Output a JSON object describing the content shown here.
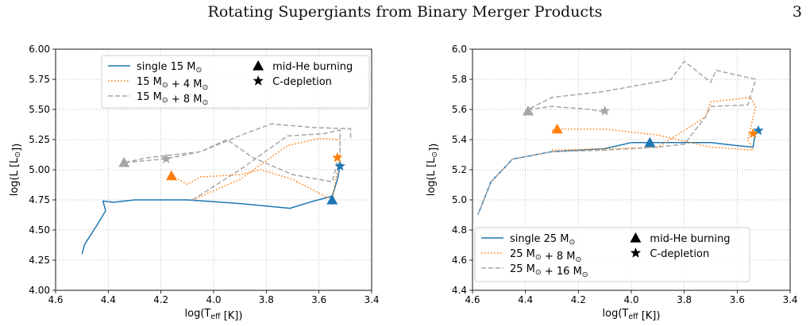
{
  "header": {
    "running_title": "Rotating Supergiants from Binary Merger Products",
    "page_number": "3"
  },
  "colors": {
    "blue": "#1f77b4",
    "orange": "#ff7f0e",
    "gray": "#a6a6a6"
  },
  "chart_data": [
    {
      "type": "line",
      "xlabel": "log(T_eff [K])",
      "ylabel": "log(L [L_⊙])",
      "xlim": [
        4.6,
        3.4
      ],
      "ylim": [
        4.0,
        6.0
      ],
      "x_ticks": [
        "4.6",
        "4.4",
        "4.2",
        "4.0",
        "3.8",
        "3.6",
        "3.4"
      ],
      "y_ticks": [
        "4.00",
        "4.25",
        "4.50",
        "4.75",
        "5.00",
        "5.25",
        "5.50",
        "5.75",
        "6.00"
      ],
      "grid": true,
      "legend_position": "top",
      "legend_markers": [
        {
          "symbol": "triangle",
          "label": "mid-He burning"
        },
        {
          "symbol": "star",
          "label": "C-depletion"
        }
      ],
      "series": [
        {
          "name": "single 15 M_⊙",
          "color": "blue",
          "style": "solid",
          "points": [
            [
              4.5,
              4.3
            ],
            [
              4.49,
              4.38
            ],
            [
              4.44,
              4.55
            ],
            [
              4.41,
              4.66
            ],
            [
              4.42,
              4.74
            ],
            [
              4.38,
              4.73
            ],
            [
              4.3,
              4.75
            ],
            [
              4.1,
              4.75
            ],
            [
              3.9,
              4.72
            ],
            [
              3.71,
              4.68
            ],
            [
              3.62,
              4.74
            ],
            [
              3.55,
              4.78
            ],
            [
              3.53,
              4.92
            ],
            [
              3.52,
              5.03
            ]
          ],
          "mid_he": [
            3.55,
            4.75
          ],
          "c_depletion": [
            3.52,
            5.03
          ]
        },
        {
          "name": "15 M_⊙ + 4 M_⊙",
          "color": "orange",
          "style": "dotted",
          "points": [
            [
              4.08,
              4.75
            ],
            [
              3.9,
              4.92
            ],
            [
              3.72,
              5.2
            ],
            [
              3.6,
              5.26
            ],
            [
              3.52,
              5.25
            ],
            [
              3.52,
              5.12
            ],
            [
              3.55,
              4.75
            ],
            [
              3.7,
              4.92
            ],
            [
              3.82,
              5.0
            ],
            [
              3.9,
              4.96
            ],
            [
              4.05,
              4.94
            ],
            [
              4.1,
              4.88
            ],
            [
              4.16,
              4.95
            ]
          ],
          "mid_he": [
            4.16,
            4.95
          ],
          "c_depletion": [
            3.53,
            5.1
          ]
        },
        {
          "name": "15 M_⊙ + 8 M_⊙",
          "color": "gray",
          "style": "dashed",
          "points": [
            [
              4.08,
              4.75
            ],
            [
              3.9,
              5.0
            ],
            [
              3.72,
              5.28
            ],
            [
              3.58,
              5.3
            ],
            [
              3.52,
              5.33
            ],
            [
              3.52,
              5.15
            ],
            [
              3.55,
              4.9
            ],
            [
              3.7,
              4.96
            ],
            [
              3.85,
              5.1
            ],
            [
              3.95,
              5.25
            ],
            [
              4.05,
              5.15
            ],
            [
              4.18,
              5.09
            ],
            [
              4.34,
              5.06
            ],
            [
              4.25,
              5.1
            ],
            [
              4.05,
              5.15
            ],
            [
              3.88,
              5.3
            ],
            [
              3.78,
              5.38
            ],
            [
              3.62,
              5.35
            ],
            [
              3.48,
              5.34
            ],
            [
              3.48,
              5.25
            ]
          ],
          "mid_he": [
            4.34,
            5.06
          ],
          "c_depletion": [
            4.18,
            5.09
          ]
        }
      ]
    },
    {
      "type": "line",
      "xlabel": "log(T_eff [K])",
      "ylabel": "log(L [L_⊙])",
      "xlim": [
        4.6,
        3.4
      ],
      "ylim": [
        4.4,
        6.0
      ],
      "x_ticks": [
        "4.6",
        "4.4",
        "4.2",
        "4.0",
        "3.8",
        "3.6",
        "3.4"
      ],
      "y_ticks": [
        "4.4",
        "4.6",
        "4.8",
        "5.0",
        "5.2",
        "5.4",
        "5.6",
        "5.8",
        "6.0"
      ],
      "grid": true,
      "legend_position": "bottom-left",
      "legend_markers": [
        {
          "symbol": "triangle",
          "label": "mid-He burning"
        },
        {
          "symbol": "star",
          "label": "C-depletion"
        }
      ],
      "series": [
        {
          "name": "single 25 M_⊙",
          "color": "blue",
          "style": "solid",
          "points": [
            [
              4.58,
              4.9
            ],
            [
              4.53,
              5.12
            ],
            [
              4.47,
              5.23
            ],
            [
              4.45,
              5.27
            ],
            [
              4.42,
              5.28
            ],
            [
              4.3,
              5.32
            ],
            [
              4.1,
              5.34
            ],
            [
              4.0,
              5.38
            ],
            [
              3.9,
              5.38
            ],
            [
              3.7,
              5.38
            ],
            [
              3.6,
              5.36
            ],
            [
              3.54,
              5.35
            ],
            [
              3.53,
              5.46
            ]
          ],
          "mid_he": [
            3.93,
            5.38
          ],
          "c_depletion": [
            3.52,
            5.46
          ]
        },
        {
          "name": "25 M_⊙ + 8 M_⊙",
          "color": "orange",
          "style": "dotted",
          "points": [
            [
              4.3,
              5.33
            ],
            [
              4.05,
              5.34
            ],
            [
              3.9,
              5.35
            ],
            [
              3.72,
              5.55
            ],
            [
              3.7,
              5.65
            ],
            [
              3.55,
              5.68
            ],
            [
              3.53,
              5.62
            ],
            [
              3.56,
              5.4
            ],
            [
              3.54,
              5.33
            ],
            [
              3.7,
              5.35
            ],
            [
              3.9,
              5.43
            ],
            [
              4.1,
              5.47
            ],
            [
              4.28,
              5.47
            ],
            [
              4.3,
              5.46
            ]
          ],
          "mid_he": [
            4.28,
            5.47
          ],
          "c_depletion": [
            3.54,
            5.44
          ]
        },
        {
          "name": "25 M_⊙ + 16 M_⊙",
          "color": "gray",
          "style": "dashed",
          "points": [
            [
              4.58,
              4.9
            ],
            [
              4.53,
              5.12
            ],
            [
              4.47,
              5.23
            ],
            [
              4.45,
              5.27
            ],
            [
              4.42,
              5.28
            ],
            [
              4.3,
              5.32
            ],
            [
              4.1,
              5.33
            ],
            [
              3.9,
              5.35
            ],
            [
              3.8,
              5.37
            ],
            [
              3.72,
              5.55
            ],
            [
              3.7,
              5.62
            ],
            [
              3.56,
              5.63
            ],
            [
              3.53,
              5.8
            ],
            [
              3.68,
              5.86
            ],
            [
              3.7,
              5.78
            ],
            [
              3.8,
              5.92
            ],
            [
              3.85,
              5.8
            ],
            [
              4.1,
              5.72
            ],
            [
              4.3,
              5.68
            ],
            [
              4.39,
              5.6
            ],
            [
              4.3,
              5.62
            ],
            [
              4.15,
              5.6
            ],
            [
              4.1,
              5.58
            ]
          ],
          "mid_he": [
            4.39,
            5.59
          ],
          "c_depletion": [
            4.1,
            5.59
          ]
        }
      ]
    }
  ]
}
